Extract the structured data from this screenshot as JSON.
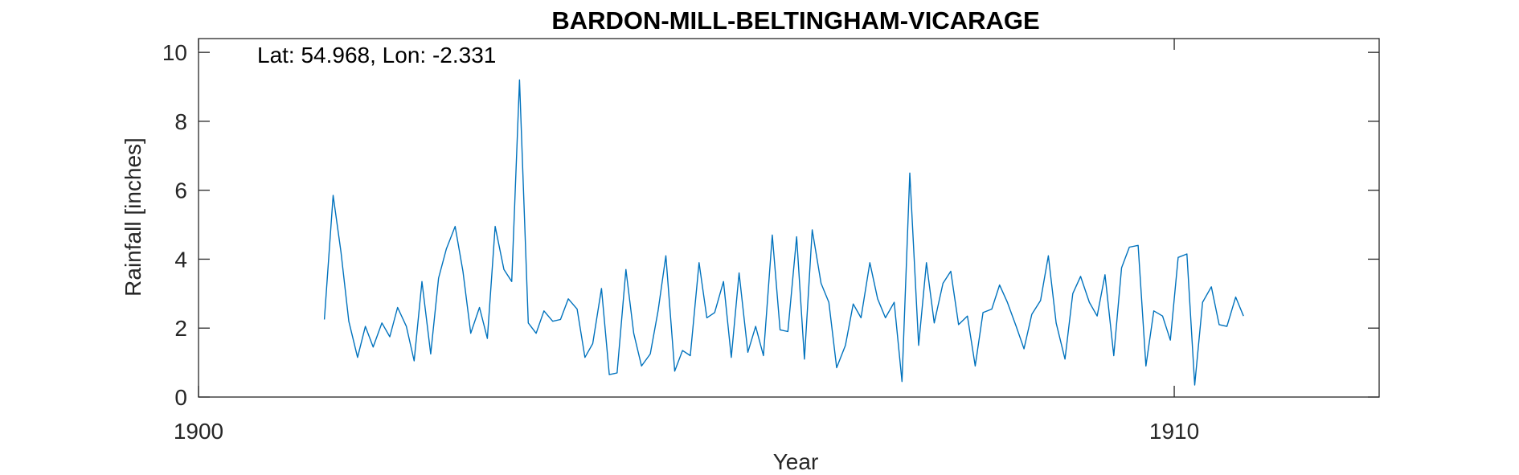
{
  "chart_data": {
    "type": "line",
    "title": "BARDON-MILL-BELTINGHAM-VICARAGE",
    "xlabel": "Year",
    "ylabel": "Rainfall [inches]",
    "annotation": "Lat: 54.968, Lon: -2.331",
    "xlim": [
      1900,
      1912.1
    ],
    "ylim": [
      0,
      10.4
    ],
    "x_ticks": [
      1900,
      1910
    ],
    "y_ticks": [
      0,
      2,
      4,
      6,
      8,
      10
    ],
    "grid": false,
    "series": [
      {
        "color": "#0072BD",
        "x": [
          1901.29,
          1901.38,
          1901.46,
          1901.54,
          1901.63,
          1901.71,
          1901.79,
          1901.88,
          1901.96,
          1902.04,
          1902.13,
          1902.21,
          1902.29,
          1902.38,
          1902.46,
          1902.54,
          1902.63,
          1902.71,
          1902.79,
          1902.88,
          1902.96,
          1903.04,
          1903.13,
          1903.21,
          1903.29,
          1903.38,
          1903.46,
          1903.54,
          1903.63,
          1903.71,
          1903.79,
          1903.88,
          1903.96,
          1904.04,
          1904.13,
          1904.21,
          1904.29,
          1904.38,
          1904.46,
          1904.54,
          1904.63,
          1904.71,
          1904.79,
          1904.88,
          1904.96,
          1905.04,
          1905.13,
          1905.21,
          1905.29,
          1905.38,
          1905.46,
          1905.54,
          1905.63,
          1905.71,
          1905.79,
          1905.88,
          1905.96,
          1906.04,
          1906.13,
          1906.21,
          1906.29,
          1906.38,
          1906.46,
          1906.54,
          1906.63,
          1906.71,
          1906.79,
          1906.88,
          1906.96,
          1907.04,
          1907.13,
          1907.21,
          1907.29,
          1907.38,
          1907.46,
          1907.54,
          1907.63,
          1907.71,
          1907.79,
          1907.88,
          1907.96,
          1908.04,
          1908.13,
          1908.21,
          1908.29,
          1908.38,
          1908.46,
          1908.54,
          1908.63,
          1908.71,
          1908.79,
          1908.88,
          1908.96,
          1909.04,
          1909.13,
          1909.21,
          1909.29,
          1909.38,
          1909.46,
          1909.54,
          1909.63,
          1909.71,
          1909.79,
          1909.88,
          1909.96,
          1910.04,
          1910.13,
          1910.21,
          1910.29,
          1910.38,
          1910.46,
          1910.54,
          1910.63,
          1910.71
        ],
        "values": [
          2.25,
          5.85,
          4.2,
          2.2,
          1.15,
          2.05,
          1.45,
          2.15,
          1.75,
          2.6,
          2.05,
          1.05,
          3.35,
          1.25,
          3.45,
          4.3,
          4.95,
          3.65,
          1.85,
          2.6,
          1.7,
          4.95,
          3.7,
          3.35,
          9.2,
          2.15,
          1.85,
          2.5,
          2.2,
          2.25,
          2.85,
          2.55,
          1.15,
          1.55,
          3.15,
          0.65,
          0.7,
          3.7,
          1.85,
          0.9,
          1.25,
          2.5,
          4.1,
          0.75,
          1.35,
          1.2,
          3.9,
          2.3,
          2.45,
          3.35,
          1.15,
          3.6,
          1.3,
          2.05,
          1.2,
          4.7,
          1.95,
          1.9,
          4.65,
          1.1,
          4.85,
          3.3,
          2.75,
          0.85,
          1.5,
          2.7,
          2.3,
          3.9,
          2.85,
          2.3,
          2.75,
          0.45,
          6.5,
          1.5,
          3.9,
          2.15,
          3.3,
          3.65,
          2.1,
          2.35,
          0.9,
          2.45,
          2.55,
          3.25,
          2.75,
          2.05,
          1.4,
          2.4,
          2.8,
          4.1,
          2.15,
          1.1,
          3.0,
          3.5,
          2.75,
          2.35,
          3.55,
          1.2,
          3.75,
          4.35,
          4.4,
          0.9,
          2.5,
          2.35,
          1.65,
          4.05,
          4.15,
          0.35,
          2.75,
          3.2,
          2.1,
          2.05,
          2.9,
          2.35
        ]
      }
    ]
  }
}
